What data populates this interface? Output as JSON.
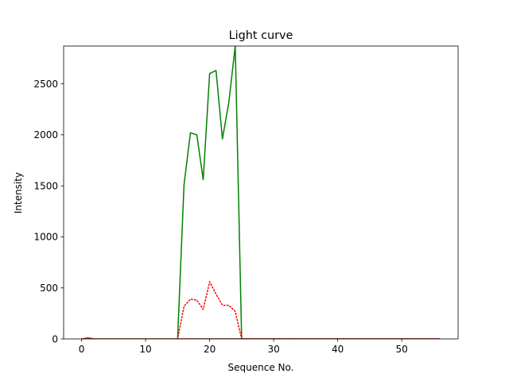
{
  "chart_data": {
    "type": "line",
    "title": "Light curve",
    "xlabel": "Sequence No.",
    "ylabel": "Intensity",
    "xlim": [
      -2.8,
      58.8
    ],
    "ylim": [
      0,
      2870
    ],
    "xticks": [
      0,
      10,
      20,
      30,
      40,
      50
    ],
    "yticks": [
      0,
      500,
      1000,
      1500,
      2000,
      2500
    ],
    "grid": false,
    "series": [
      {
        "color": "#008000",
        "style": "solid",
        "x": [
          0,
          1,
          2,
          3,
          4,
          5,
          6,
          7,
          8,
          9,
          10,
          11,
          12,
          13,
          14,
          15,
          16,
          17,
          18,
          19,
          20,
          21,
          22,
          23,
          24,
          25,
          26,
          27,
          28,
          29,
          30,
          31,
          32,
          33,
          34,
          35,
          36,
          37,
          38,
          39,
          40,
          41,
          42,
          43,
          44,
          45,
          46,
          47,
          48,
          49,
          50,
          51,
          52,
          53,
          54,
          55,
          56
        ],
        "y": [
          0,
          10,
          0,
          0,
          0,
          0,
          0,
          0,
          0,
          0,
          0,
          0,
          0,
          0,
          0,
          0,
          1510,
          2020,
          2000,
          1560,
          2600,
          2630,
          1960,
          2320,
          2870,
          0,
          0,
          0,
          0,
          0,
          0,
          0,
          0,
          0,
          0,
          0,
          0,
          0,
          0,
          0,
          0,
          0,
          0,
          0,
          0,
          0,
          0,
          0,
          0,
          0,
          0,
          0,
          0,
          0,
          0,
          0,
          0
        ]
      },
      {
        "color": "#ff0000",
        "style": "dotted",
        "x": [
          0,
          1,
          2,
          3,
          4,
          5,
          6,
          7,
          8,
          9,
          10,
          11,
          12,
          13,
          14,
          15,
          16,
          17,
          18,
          19,
          20,
          21,
          22,
          23,
          24,
          25,
          26,
          27,
          28,
          29,
          30,
          31,
          32,
          33,
          34,
          35,
          36,
          37,
          38,
          39,
          40,
          41,
          42,
          43,
          44,
          45,
          46,
          47,
          48,
          49,
          50,
          51,
          52,
          53,
          54,
          55,
          56
        ],
        "y": [
          0,
          5,
          0,
          0,
          0,
          0,
          0,
          0,
          0,
          0,
          0,
          0,
          0,
          0,
          0,
          0,
          320,
          390,
          380,
          290,
          560,
          440,
          330,
          330,
          270,
          0,
          0,
          0,
          0,
          0,
          0,
          0,
          0,
          0,
          0,
          0,
          0,
          0,
          0,
          0,
          0,
          0,
          0,
          0,
          0,
          0,
          0,
          0,
          0,
          0,
          0,
          0,
          0,
          0,
          0,
          0,
          0
        ]
      },
      {
        "color": "#8b0000",
        "style": "solid",
        "x": [
          15,
          56
        ],
        "y": [
          0,
          0
        ]
      }
    ]
  }
}
